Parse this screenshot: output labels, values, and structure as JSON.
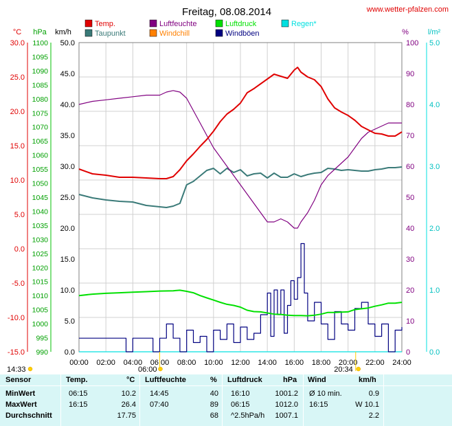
{
  "title": "Freitag, 08.08.2014",
  "site": "www.wetter-pfalzen.com",
  "axis_units": {
    "temp": "°C",
    "pressure": "hPa",
    "wind": "km/h",
    "humidity": "%",
    "rain": "l/m²"
  },
  "legend": [
    {
      "name": "Temp.",
      "color": "#e00000"
    },
    {
      "name": "Taupunkt",
      "color": "#3a7a78"
    },
    {
      "name": "Luftfeuchte",
      "color": "#800080"
    },
    {
      "name": "Windchill",
      "color": "#ff8000"
    },
    {
      "name": "Luftdruck",
      "color": "#00e000"
    },
    {
      "name": "Windböen",
      "color": "#000080"
    },
    {
      "name": "Regen*",
      "color": "#00e0e0"
    }
  ],
  "sun": {
    "sunrise": "06:00",
    "sunset": "20:34",
    "day_length": "14:33"
  },
  "chart_data": {
    "type": "line",
    "title": "Freitag, 08.08.2014",
    "x_ticks": [
      "00:00",
      "02:00",
      "04:00",
      "06:00",
      "08:00",
      "10:00",
      "12:00",
      "14:00",
      "16:00",
      "18:00",
      "20:00",
      "22:00",
      "24:00"
    ],
    "x_range_hours": [
      0,
      24
    ],
    "grid": true,
    "axes": {
      "temp_c": {
        "range": [
          -15,
          30
        ],
        "ticks": [
          "30.0",
          "25.0",
          "20.0",
          "15.0",
          "10.0",
          "5.0",
          "0.0",
          "-5.0",
          "-10.0",
          "-15.0"
        ]
      },
      "pressure_hpa": {
        "range": [
          990,
          1100
        ],
        "ticks": [
          "1100",
          "1095",
          "1090",
          "1085",
          "1080",
          "1075",
          "1070",
          "1065",
          "1060",
          "1055",
          "1050",
          "1045",
          "1040",
          "1035",
          "1030",
          "1025",
          "1020",
          "1015",
          "1010",
          "1005",
          "1000",
          "995",
          "990"
        ]
      },
      "wind_kmh": {
        "range": [
          0,
          50
        ],
        "ticks": [
          "50.0",
          "45.0",
          "40.0",
          "35.0",
          "30.0",
          "25.0",
          "20.0",
          "15.0",
          "10.0",
          "5.0",
          "0.0"
        ]
      },
      "humidity_pct": {
        "range": [
          0,
          100
        ],
        "ticks": [
          "100",
          "90",
          "80",
          "70",
          "60",
          "50",
          "40",
          "30",
          "20",
          "10",
          "0"
        ]
      },
      "rain_lm2": {
        "range": [
          0,
          5
        ],
        "ticks": [
          "5.0",
          "4.0",
          "3.0",
          "2.0",
          "1.0",
          "0.0"
        ]
      }
    },
    "series": [
      {
        "name": "Temp.",
        "axis": "temp_c",
        "x": [
          0,
          1,
          2,
          3,
          4,
          5,
          6,
          6.5,
          7,
          7.5,
          8,
          8.5,
          9,
          9.5,
          10,
          10.5,
          11,
          11.5,
          12,
          12.5,
          13,
          13.5,
          14,
          14.5,
          15,
          15.5,
          16,
          16.25,
          16.5,
          17,
          17.5,
          18,
          18.5,
          19,
          19.5,
          20,
          20.5,
          21,
          21.5,
          22,
          22.5,
          23,
          23.5,
          24
        ],
        "y": [
          11.6,
          10.9,
          10.7,
          10.4,
          10.4,
          10.3,
          10.2,
          10.2,
          10.5,
          11.5,
          12.8,
          13.8,
          14.9,
          15.9,
          17.1,
          18.5,
          19.6,
          20.3,
          21.2,
          22.7,
          23.3,
          24.0,
          24.7,
          25.4,
          25.1,
          24.8,
          26.0,
          26.4,
          25.7,
          25.0,
          24.6,
          23.6,
          21.8,
          20.5,
          19.9,
          19.4,
          18.7,
          17.8,
          17.3,
          16.8,
          16.7,
          16.4,
          16.4,
          17.0
        ]
      },
      {
        "name": "Taupunkt",
        "axis": "temp_c",
        "x": [
          0,
          1,
          2,
          3,
          4,
          5,
          6,
          6.5,
          7,
          7.5,
          8,
          8.5,
          9,
          9.5,
          10,
          10.5,
          11,
          11.5,
          12,
          12.5,
          13,
          13.5,
          14,
          14.5,
          15,
          15.5,
          16,
          16.5,
          17,
          17.5,
          18,
          18.5,
          19,
          19.5,
          20,
          20.5,
          21,
          21.5,
          22,
          22.5,
          23,
          23.5,
          24
        ],
        "y": [
          7.9,
          7.4,
          7.1,
          6.9,
          6.8,
          6.3,
          6.1,
          6.0,
          6.2,
          6.6,
          9.3,
          9.8,
          10.6,
          11.4,
          11.7,
          10.9,
          11.7,
          11.1,
          11.5,
          10.6,
          10.9,
          11.0,
          10.3,
          11.0,
          10.4,
          10.4,
          10.9,
          10.5,
          10.8,
          11.0,
          11.1,
          11.7,
          11.6,
          11.4,
          11.5,
          11.4,
          11.3,
          11.3,
          11.5,
          11.6,
          11.8,
          11.8,
          11.9
        ]
      },
      {
        "name": "Luftfeuchte",
        "axis": "humidity_pct",
        "x": [
          0,
          1,
          2,
          3,
          4,
          5,
          6,
          6.5,
          7,
          7.5,
          8,
          8.5,
          9,
          9.5,
          10,
          10.5,
          11,
          11.5,
          12,
          12.5,
          13,
          13.5,
          14,
          14.5,
          15,
          15.5,
          16,
          16.25,
          16.5,
          17,
          17.5,
          18,
          18.5,
          19,
          19.5,
          20,
          20.5,
          21,
          21.5,
          22,
          22.5,
          23,
          23.5,
          24
        ],
        "y": [
          80,
          81,
          81.5,
          82,
          82.5,
          83,
          83,
          84,
          84.5,
          84,
          82,
          78,
          74,
          70,
          66,
          63,
          60,
          57,
          54,
          51,
          48,
          45,
          42,
          42,
          43,
          42,
          40,
          40,
          42,
          45,
          49,
          54,
          57,
          59,
          61,
          63,
          66,
          69,
          71,
          72,
          73,
          74,
          74,
          74
        ]
      },
      {
        "name": "Luftdruck",
        "axis": "pressure_hpa",
        "x": [
          0,
          1,
          2,
          3,
          4,
          5,
          6,
          7,
          7.5,
          8,
          8.5,
          9,
          9.5,
          10,
          10.5,
          11,
          11.5,
          12,
          12.5,
          13,
          13.5,
          14,
          14.5,
          15,
          15.5,
          16,
          16.5,
          17,
          17.5,
          18,
          18.5,
          19,
          19.5,
          20,
          20.5,
          21,
          21.5,
          22,
          22.5,
          23,
          23.5,
          24
        ],
        "y": [
          1010.0,
          1010.5,
          1010.8,
          1011.0,
          1011.2,
          1011.4,
          1011.6,
          1011.7,
          1011.9,
          1011.5,
          1011.0,
          1010.0,
          1009.2,
          1008.4,
          1007.6,
          1006.9,
          1006.5,
          1005.9,
          1004.8,
          1004.3,
          1004.2,
          1003.8,
          1003.4,
          1003.3,
          1003.0,
          1002.9,
          1002.9,
          1002.8,
          1003.0,
          1003.4,
          1004.0,
          1004.0,
          1004.1,
          1004.2,
          1005.0,
          1005.3,
          1005.6,
          1006.2,
          1006.7,
          1007.3,
          1007.3,
          1007.6
        ]
      },
      {
        "name": "Windböen",
        "axis": "wind_kmh",
        "x": [
          0,
          1,
          2,
          3,
          3.5,
          4,
          4.5,
          5,
          5.5,
          6,
          6.5,
          7,
          7.5,
          8,
          8.5,
          9,
          9.5,
          10,
          10.5,
          11,
          11.5,
          12,
          12.5,
          13,
          13.5,
          14,
          14.25,
          14.5,
          14.75,
          15,
          15.25,
          15.5,
          15.75,
          16,
          16.25,
          16.5,
          16.75,
          17,
          17.5,
          18,
          18.5,
          19,
          19.5,
          20,
          20.5,
          21,
          21.5,
          22,
          22.5,
          23,
          23.5,
          24
        ],
        "y": [
          2.2,
          2.2,
          2.2,
          2.2,
          0,
          2.2,
          2.2,
          2.2,
          0,
          2.2,
          4.5,
          2.2,
          0,
          3.5,
          1.5,
          2.5,
          0,
          3.5,
          2,
          4.5,
          1.5,
          4,
          2,
          3,
          6,
          9.5,
          2.5,
          10,
          6,
          10,
          3,
          7.5,
          11.5,
          8.5,
          12,
          17.5,
          9.5,
          5,
          8,
          4.5,
          2,
          6.5,
          4.5,
          3.5,
          7,
          8,
          4.5,
          2.5,
          4.5,
          0,
          3.5,
          4
        ]
      },
      {
        "name": "Windchill",
        "axis": "temp_c",
        "x": [],
        "y": []
      },
      {
        "name": "Regen*",
        "axis": "rain_lm2",
        "x": [
          0,
          24
        ],
        "y": [
          0,
          0
        ]
      }
    ]
  },
  "stats": {
    "headers": {
      "sensor": "Sensor",
      "temp": "Temp.",
      "temp_unit": "°C",
      "humidity": "Luftfeuchte",
      "humidity_unit": "%",
      "pressure": "Luftdruck",
      "pressure_unit": "hPa",
      "wind": "Wind",
      "wind_unit": "km/h"
    },
    "rows": [
      {
        "label": "MinWert",
        "temp_time": "06:15",
        "temp_val": "10.2",
        "hum_time": "14:45",
        "hum_val": "40",
        "press_time": "16:10",
        "press_val": "1001.2",
        "wind_time": "Ø 10 min.",
        "wind_val": "0.9"
      },
      {
        "label": "MaxWert",
        "temp_time": "16:15",
        "temp_val": "26.4",
        "hum_time": "07:40",
        "hum_val": "89",
        "press_time": "06:15",
        "press_val": "1012.0",
        "wind_time": "16:15",
        "wind_val": "W 10.1"
      },
      {
        "label": "Durchschnitt",
        "temp_time": "",
        "temp_val": "17.75",
        "hum_time": "",
        "hum_val": "68",
        "press_time": "^2.5hPa/h",
        "press_val": "1007.1",
        "wind_time": "",
        "wind_val": "2.2"
      }
    ]
  }
}
